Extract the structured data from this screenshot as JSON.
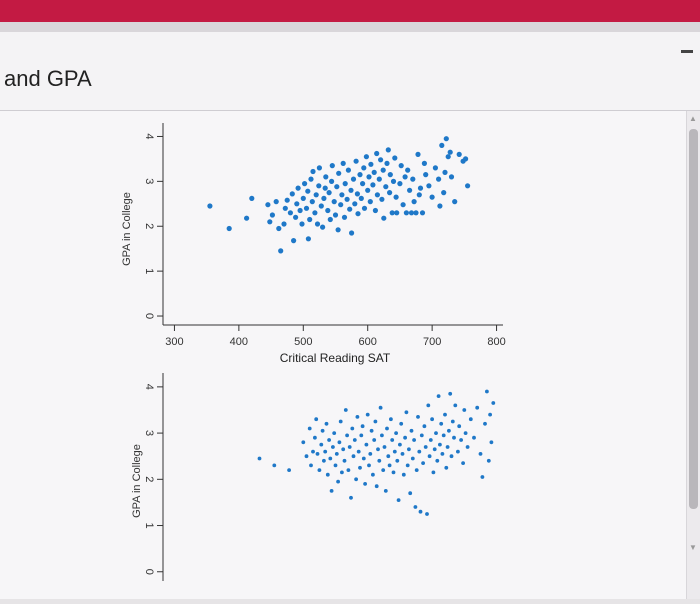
{
  "window": {
    "heading": "and GPA",
    "minimize_glyph": "minimize-icon"
  },
  "colors": {
    "accent_bar": "#c31a43",
    "point": "#1f78c8",
    "axis": "#333333"
  },
  "chart_data": [
    {
      "type": "scatter",
      "xlabel": "Critical Reading SAT",
      "ylabel": "GPA in College",
      "xlim": [
        290,
        810
      ],
      "ylim": [
        -0.2,
        4.3
      ],
      "xticks": [
        "300",
        "400",
        "500",
        "600",
        "700",
        "800"
      ],
      "yticks": [
        "0",
        "1",
        "2",
        "3",
        "4"
      ],
      "points": [
        [
          355,
          2.45
        ],
        [
          385,
          1.95
        ],
        [
          412,
          2.18
        ],
        [
          420,
          2.62
        ],
        [
          445,
          2.48
        ],
        [
          448,
          2.1
        ],
        [
          452,
          2.25
        ],
        [
          458,
          2.55
        ],
        [
          462,
          1.95
        ],
        [
          465,
          1.45
        ],
        [
          470,
          2.05
        ],
        [
          472,
          2.4
        ],
        [
          475,
          2.58
        ],
        [
          480,
          2.3
        ],
        [
          483,
          2.72
        ],
        [
          485,
          1.68
        ],
        [
          488,
          2.2
        ],
        [
          490,
          2.5
        ],
        [
          492,
          2.85
        ],
        [
          495,
          2.35
        ],
        [
          498,
          2.05
        ],
        [
          500,
          2.62
        ],
        [
          502,
          2.95
        ],
        [
          505,
          2.4
        ],
        [
          507,
          2.78
        ],
        [
          508,
          1.72
        ],
        [
          510,
          2.15
        ],
        [
          512,
          3.05
        ],
        [
          514,
          2.55
        ],
        [
          515,
          3.22
        ],
        [
          518,
          2.3
        ],
        [
          520,
          2.7
        ],
        [
          522,
          2.05
        ],
        [
          524,
          2.9
        ],
        [
          525,
          3.3
        ],
        [
          528,
          2.45
        ],
        [
          530,
          1.98
        ],
        [
          532,
          2.62
        ],
        [
          534,
          2.85
        ],
        [
          535,
          3.1
        ],
        [
          538,
          2.35
        ],
        [
          540,
          2.75
        ],
        [
          542,
          2.15
        ],
        [
          544,
          3.0
        ],
        [
          545,
          3.35
        ],
        [
          548,
          2.55
        ],
        [
          550,
          2.25
        ],
        [
          552,
          2.88
        ],
        [
          554,
          1.92
        ],
        [
          555,
          3.18
        ],
        [
          558,
          2.48
        ],
        [
          560,
          2.7
        ],
        [
          562,
          3.4
        ],
        [
          564,
          2.2
        ],
        [
          565,
          2.95
        ],
        [
          568,
          2.6
        ],
        [
          570,
          3.25
        ],
        [
          572,
          2.38
        ],
        [
          574,
          2.8
        ],
        [
          575,
          1.85
        ],
        [
          578,
          3.05
        ],
        [
          580,
          2.5
        ],
        [
          582,
          3.45
        ],
        [
          584,
          2.72
        ],
        [
          585,
          2.28
        ],
        [
          588,
          3.15
        ],
        [
          590,
          2.62
        ],
        [
          592,
          2.95
        ],
        [
          594,
          3.3
        ],
        [
          595,
          2.4
        ],
        [
          598,
          3.55
        ],
        [
          600,
          2.8
        ],
        [
          602,
          3.1
        ],
        [
          604,
          2.55
        ],
        [
          605,
          3.38
        ],
        [
          608,
          2.92
        ],
        [
          610,
          3.2
        ],
        [
          612,
          2.35
        ],
        [
          614,
          3.62
        ],
        [
          615,
          2.7
        ],
        [
          618,
          3.05
        ],
        [
          620,
          3.48
        ],
        [
          622,
          2.6
        ],
        [
          624,
          3.25
        ],
        [
          625,
          2.18
        ],
        [
          628,
          2.88
        ],
        [
          630,
          3.4
        ],
        [
          632,
          3.7
        ],
        [
          634,
          2.75
        ],
        [
          635,
          3.15
        ],
        [
          638,
          2.3
        ],
        [
          640,
          3.0
        ],
        [
          642,
          3.52
        ],
        [
          644,
          2.65
        ],
        [
          645,
          2.3
        ],
        [
          650,
          2.95
        ],
        [
          652,
          3.35
        ],
        [
          655,
          2.48
        ],
        [
          658,
          3.1
        ],
        [
          660,
          2.3
        ],
        [
          662,
          3.25
        ],
        [
          665,
          2.8
        ],
        [
          668,
          2.3
        ],
        [
          670,
          3.05
        ],
        [
          672,
          2.55
        ],
        [
          675,
          2.3
        ],
        [
          678,
          3.6
        ],
        [
          680,
          2.7
        ],
        [
          682,
          2.85
        ],
        [
          685,
          2.3
        ],
        [
          688,
          3.4
        ],
        [
          690,
          3.15
        ],
        [
          695,
          2.9
        ],
        [
          700,
          2.65
        ],
        [
          705,
          3.3
        ],
        [
          710,
          3.05
        ],
        [
          712,
          2.45
        ],
        [
          715,
          3.8
        ],
        [
          718,
          2.75
        ],
        [
          720,
          3.2
        ],
        [
          722,
          3.95
        ],
        [
          725,
          3.55
        ],
        [
          728,
          3.65
        ],
        [
          730,
          3.1
        ],
        [
          735,
          2.55
        ],
        [
          742,
          3.6
        ],
        [
          748,
          3.45
        ],
        [
          752,
          3.5
        ],
        [
          755,
          2.9
        ]
      ]
    },
    {
      "type": "scatter",
      "xlabel": "",
      "ylabel": "GPA in College",
      "xlim": [
        290,
        810
      ],
      "ylim": [
        -0.2,
        4.3
      ],
      "yticks": [
        "0",
        "1",
        "2",
        "3",
        "4"
      ],
      "points": [
        [
          432,
          2.45
        ],
        [
          455,
          2.3
        ],
        [
          478,
          2.2
        ],
        [
          500,
          2.8
        ],
        [
          505,
          2.5
        ],
        [
          510,
          3.1
        ],
        [
          512,
          2.3
        ],
        [
          515,
          2.6
        ],
        [
          518,
          2.9
        ],
        [
          520,
          3.3
        ],
        [
          522,
          2.55
        ],
        [
          525,
          2.2
        ],
        [
          528,
          2.75
        ],
        [
          530,
          3.05
        ],
        [
          532,
          2.4
        ],
        [
          534,
          2.6
        ],
        [
          536,
          3.2
        ],
        [
          538,
          2.1
        ],
        [
          540,
          2.85
        ],
        [
          542,
          2.45
        ],
        [
          544,
          1.75
        ],
        [
          546,
          2.7
        ],
        [
          548,
          3.0
        ],
        [
          550,
          2.3
        ],
        [
          552,
          2.55
        ],
        [
          554,
          1.95
        ],
        [
          556,
          2.8
        ],
        [
          558,
          3.25
        ],
        [
          560,
          2.15
        ],
        [
          562,
          2.65
        ],
        [
          564,
          2.4
        ],
        [
          566,
          3.5
        ],
        [
          568,
          2.95
        ],
        [
          570,
          2.2
        ],
        [
          572,
          2.7
        ],
        [
          574,
          1.6
        ],
        [
          576,
          3.1
        ],
        [
          578,
          2.5
        ],
        [
          580,
          2.85
        ],
        [
          582,
          2.0
        ],
        [
          584,
          3.35
        ],
        [
          586,
          2.6
        ],
        [
          588,
          2.25
        ],
        [
          590,
          2.95
        ],
        [
          592,
          3.15
        ],
        [
          594,
          2.45
        ],
        [
          596,
          1.9
        ],
        [
          598,
          2.75
        ],
        [
          600,
          3.4
        ],
        [
          602,
          2.3
        ],
        [
          604,
          2.55
        ],
        [
          606,
          3.05
        ],
        [
          608,
          2.1
        ],
        [
          610,
          2.85
        ],
        [
          612,
          3.25
        ],
        [
          614,
          1.85
        ],
        [
          616,
          2.65
        ],
        [
          618,
          2.4
        ],
        [
          620,
          3.55
        ],
        [
          622,
          2.95
        ],
        [
          624,
          2.2
        ],
        [
          626,
          2.7
        ],
        [
          628,
          1.75
        ],
        [
          630,
          3.1
        ],
        [
          632,
          2.5
        ],
        [
          634,
          2.3
        ],
        [
          636,
          3.3
        ],
        [
          638,
          2.85
        ],
        [
          640,
          2.15
        ],
        [
          642,
          2.6
        ],
        [
          644,
          3.0
        ],
        [
          646,
          2.4
        ],
        [
          648,
          1.55
        ],
        [
          650,
          2.75
        ],
        [
          652,
          3.2
        ],
        [
          654,
          2.55
        ],
        [
          656,
          2.1
        ],
        [
          658,
          2.9
        ],
        [
          660,
          3.45
        ],
        [
          662,
          2.3
        ],
        [
          664,
          2.65
        ],
        [
          666,
          1.7
        ],
        [
          668,
          3.05
        ],
        [
          670,
          2.45
        ],
        [
          672,
          2.85
        ],
        [
          674,
          1.4
        ],
        [
          676,
          2.2
        ],
        [
          678,
          3.35
        ],
        [
          680,
          2.6
        ],
        [
          682,
          1.3
        ],
        [
          684,
          2.95
        ],
        [
          686,
          2.35
        ],
        [
          688,
          3.15
        ],
        [
          690,
          2.7
        ],
        [
          692,
          1.25
        ],
        [
          694,
          3.6
        ],
        [
          696,
          2.5
        ],
        [
          698,
          2.85
        ],
        [
          700,
          3.3
        ],
        [
          702,
          2.15
        ],
        [
          704,
          2.65
        ],
        [
          706,
          3.0
        ],
        [
          708,
          2.4
        ],
        [
          710,
          3.8
        ],
        [
          712,
          2.75
        ],
        [
          714,
          3.2
        ],
        [
          716,
          2.55
        ],
        [
          718,
          2.95
        ],
        [
          720,
          3.4
        ],
        [
          722,
          2.25
        ],
        [
          724,
          2.7
        ],
        [
          726,
          3.05
        ],
        [
          728,
          3.85
        ],
        [
          730,
          2.5
        ],
        [
          732,
          3.25
        ],
        [
          734,
          2.9
        ],
        [
          736,
          3.6
        ],
        [
          740,
          2.6
        ],
        [
          742,
          3.15
        ],
        [
          745,
          2.85
        ],
        [
          748,
          2.35
        ],
        [
          750,
          3.5
        ],
        [
          752,
          3.0
        ],
        [
          755,
          2.7
        ],
        [
          760,
          3.3
        ],
        [
          765,
          2.9
        ],
        [
          770,
          3.55
        ],
        [
          775,
          2.55
        ],
        [
          778,
          2.05
        ],
        [
          782,
          3.2
        ],
        [
          785,
          3.9
        ],
        [
          788,
          2.4
        ],
        [
          790,
          3.4
        ],
        [
          792,
          2.8
        ],
        [
          795,
          3.65
        ]
      ]
    }
  ]
}
